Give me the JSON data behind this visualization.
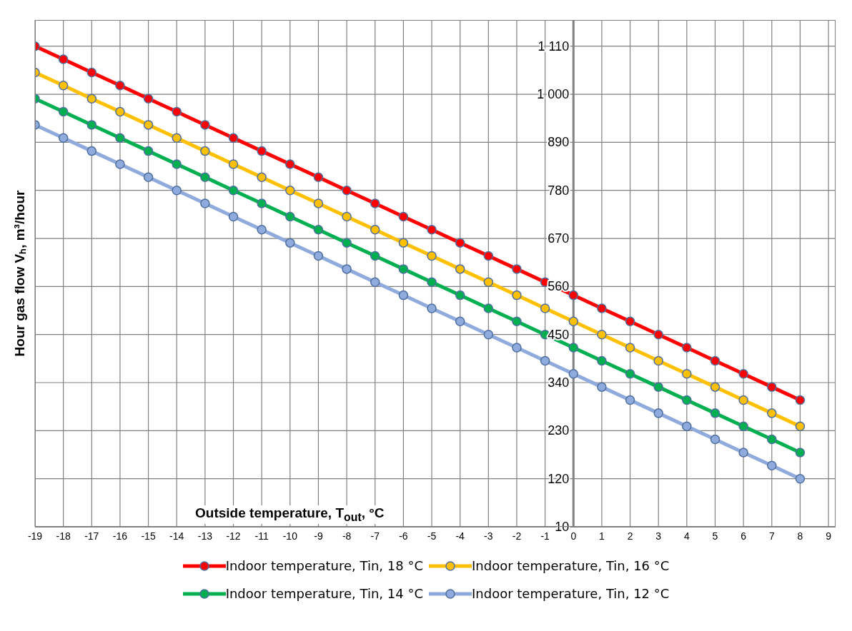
{
  "chart_data": {
    "type": "line",
    "xlabel": "Outside temperature, T$_{out}$, °C",
    "ylabel": "Hour gas flow Vₕ, m³/hour",
    "x": [
      -19,
      -18,
      -17,
      -16,
      -15,
      -14,
      -13,
      -12,
      -11,
      -10,
      -9,
      -8,
      -7,
      -6,
      -5,
      -4,
      -3,
      -2,
      -1,
      0,
      1,
      2,
      3,
      4,
      5,
      6,
      7,
      8
    ],
    "series": [
      {
        "name": "Indoor temperature, Tin, 18 °C",
        "color": "#ff0000",
        "values": [
          1110,
          1080,
          1050,
          1020,
          990,
          960,
          930,
          900,
          870,
          840,
          810,
          780,
          750,
          720,
          690,
          660,
          630,
          600,
          570,
          540,
          510,
          480,
          450,
          420,
          390,
          360,
          330,
          300
        ]
      },
      {
        "name": "Indoor temperature, Tin, 16 °C",
        "color": "#ffc000",
        "values": [
          1050,
          1020,
          990,
          960,
          930,
          900,
          870,
          840,
          810,
          780,
          750,
          720,
          690,
          660,
          630,
          600,
          570,
          540,
          510,
          480,
          450,
          420,
          390,
          360,
          330,
          300,
          270,
          240
        ]
      },
      {
        "name": "Indoor temperature, Tin, 14 °C",
        "color": "#00b050",
        "values": [
          990,
          960,
          930,
          900,
          870,
          840,
          810,
          780,
          750,
          720,
          690,
          660,
          630,
          600,
          570,
          540,
          510,
          480,
          450,
          420,
          390,
          360,
          330,
          300,
          270,
          240,
          210,
          180
        ]
      },
      {
        "name": "Indoor temperature, Tin, 12 °C",
        "color": "#8faadc",
        "values": [
          930,
          900,
          870,
          840,
          810,
          780,
          750,
          720,
          690,
          660,
          630,
          600,
          570,
          540,
          510,
          480,
          450,
          420,
          390,
          360,
          330,
          300,
          270,
          240,
          210,
          180,
          150,
          120
        ]
      }
    ],
    "xlim": [
      -19,
      9.25
    ],
    "xticks": [
      -19,
      -18,
      -17,
      -16,
      -15,
      -14,
      -13,
      -12,
      -11,
      -10,
      -9,
      -8,
      -7,
      -6,
      -5,
      -4,
      -3,
      -2,
      -1,
      0,
      1,
      2,
      3,
      4,
      5,
      6,
      7,
      8,
      9
    ],
    "ylim": [
      10,
      1170
    ],
    "yticks": [
      10,
      120,
      230,
      340,
      450,
      560,
      670,
      780,
      890,
      {
        "value": 1000,
        "label": "1 000"
      },
      {
        "value": 1110,
        "label": "1 110"
      }
    ],
    "grid": true,
    "legend": "bottom",
    "marker": "circle",
    "line_style": "solid"
  }
}
